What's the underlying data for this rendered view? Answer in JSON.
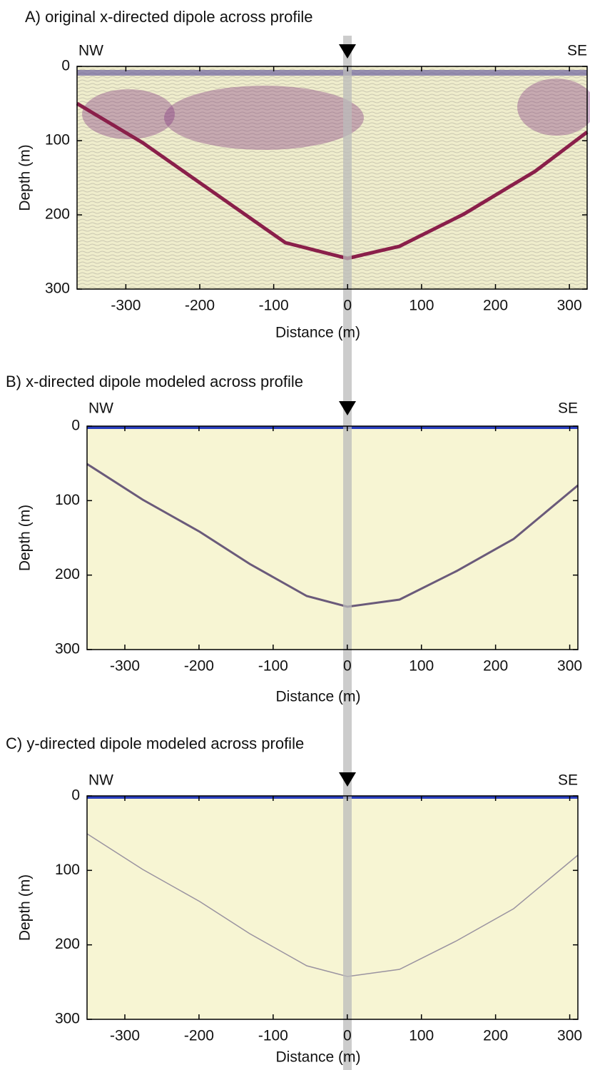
{
  "chart_data": [
    {
      "type": "radargram",
      "title": "A) original x-directed dipole across profile",
      "xlabel": "Distance (m)",
      "ylabel": "Depth (m)",
      "annotations": [
        "NW",
        "SE"
      ],
      "xlim": [
        -366,
        324
      ],
      "xticks": [
        -300,
        -200,
        -100,
        0,
        100,
        200,
        300
      ],
      "ylim": [
        0,
        300
      ],
      "yticks": [
        0,
        100,
        200,
        300
      ],
      "y_inverted": true
    },
    {
      "type": "radargram",
      "title": "B) x-directed dipole modeled across profile",
      "xlabel": "Distance (m)",
      "ylabel": "Depth (m)",
      "annotations": [
        "NW",
        "SE"
      ],
      "xlim": [
        -351,
        311
      ],
      "xticks": [
        -300,
        -200,
        -100,
        0,
        100,
        200,
        300
      ],
      "ylim": [
        0,
        300
      ],
      "yticks": [
        0,
        100,
        200,
        300
      ],
      "y_inverted": true
    },
    {
      "type": "radargram",
      "title": "C) y-directed dipole modeled across profile",
      "xlabel": "Distance (m)",
      "ylabel": "Depth (m)",
      "annotations": [
        "NW",
        "SE"
      ],
      "xlim": [
        -351,
        311
      ],
      "xticks": [
        -300,
        -200,
        -100,
        0,
        100,
        200,
        300
      ],
      "ylim": [
        0,
        300
      ],
      "yticks": [
        0,
        100,
        200,
        300
      ],
      "y_inverted": true
    }
  ]
}
